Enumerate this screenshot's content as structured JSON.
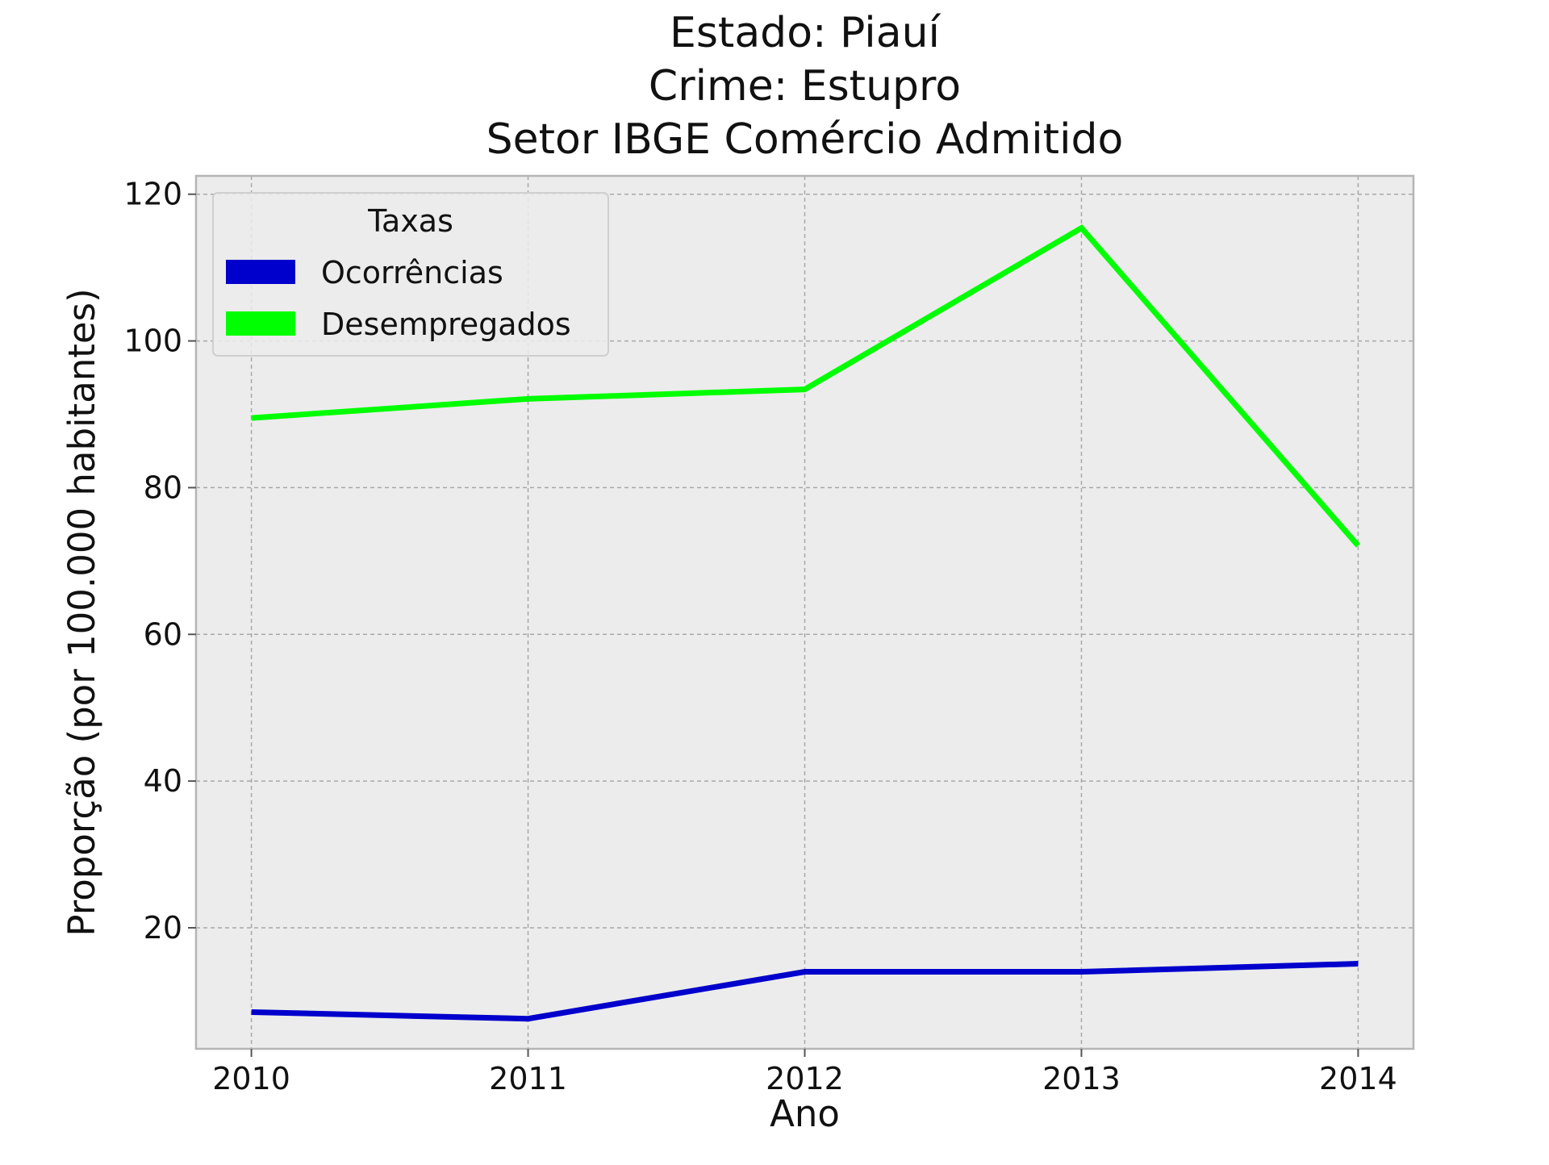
{
  "chart_data": {
    "type": "line",
    "title_lines": [
      "Estado: Piauí",
      "Crime: Estupro",
      "Setor IBGE  Comércio   Admitido"
    ],
    "xlabel": "Ano",
    "ylabel": "Proporção (por 100.000 habitantes)",
    "x": [
      2010,
      2011,
      2012,
      2013,
      2014
    ],
    "x_tick_labels": [
      "2010",
      "2011",
      "2012",
      "2013",
      "2014"
    ],
    "xlim": [
      2009.8,
      2014.2
    ],
    "ylim": [
      3.5,
      122.5
    ],
    "y_ticks": [
      20,
      40,
      60,
      80,
      100,
      120
    ],
    "y_tick_labels": [
      "20",
      "40",
      "60",
      "80",
      "100",
      "120"
    ],
    "grid": true,
    "background": "#ececec",
    "legend": {
      "title": "Taxas",
      "position": "top-left"
    },
    "series": [
      {
        "name": "Ocorrências",
        "color": "#0000cc",
        "values": [
          8.5,
          7.6,
          14.0,
          14.0,
          15.1
        ]
      },
      {
        "name": "Desempregados",
        "color": "#00ff00",
        "values": [
          89.5,
          92.1,
          93.4,
          115.4,
          72.1
        ]
      }
    ]
  }
}
